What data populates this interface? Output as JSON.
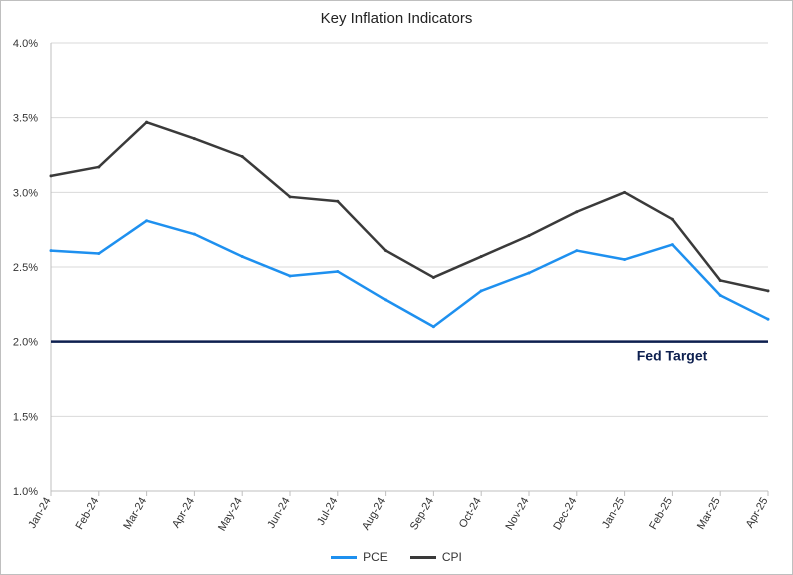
{
  "chart_data": {
    "type": "line",
    "title": "Key Inflation Indicators",
    "xlabel": "",
    "ylabel": "",
    "categories": [
      "Jan-24",
      "Feb-24",
      "Mar-24",
      "Apr-24",
      "May-24",
      "Jun-24",
      "Jul-24",
      "Aug-24",
      "Sep-24",
      "Oct-24",
      "Nov-24",
      "Dec-24",
      "Jan-25",
      "Feb-25",
      "Mar-25",
      "Apr-25"
    ],
    "ylim": [
      1.0,
      4.0
    ],
    "yticks": [
      "1.0%",
      "1.5%",
      "2.0%",
      "2.5%",
      "3.0%",
      "3.5%",
      "4.0%"
    ],
    "ytick_values": [
      1.0,
      1.5,
      2.0,
      2.5,
      3.0,
      3.5,
      4.0
    ],
    "grid": true,
    "legend_position": "bottom",
    "series": [
      {
        "name": "PCE",
        "color": "#1e90ef",
        "values": [
          2.61,
          2.59,
          2.81,
          2.72,
          2.57,
          2.44,
          2.47,
          2.28,
          2.1,
          2.34,
          2.46,
          2.61,
          2.55,
          2.65,
          2.31,
          2.15
        ]
      },
      {
        "name": "CPI",
        "color": "#3a3a3a",
        "values": [
          3.11,
          3.17,
          3.47,
          3.36,
          3.24,
          2.97,
          2.94,
          2.61,
          2.43,
          2.57,
          2.71,
          2.87,
          3.0,
          2.82,
          2.41,
          2.34
        ]
      }
    ],
    "reference_line": {
      "value": 2.0,
      "label": "Fed Target",
      "color": "#0d1f4f"
    }
  }
}
